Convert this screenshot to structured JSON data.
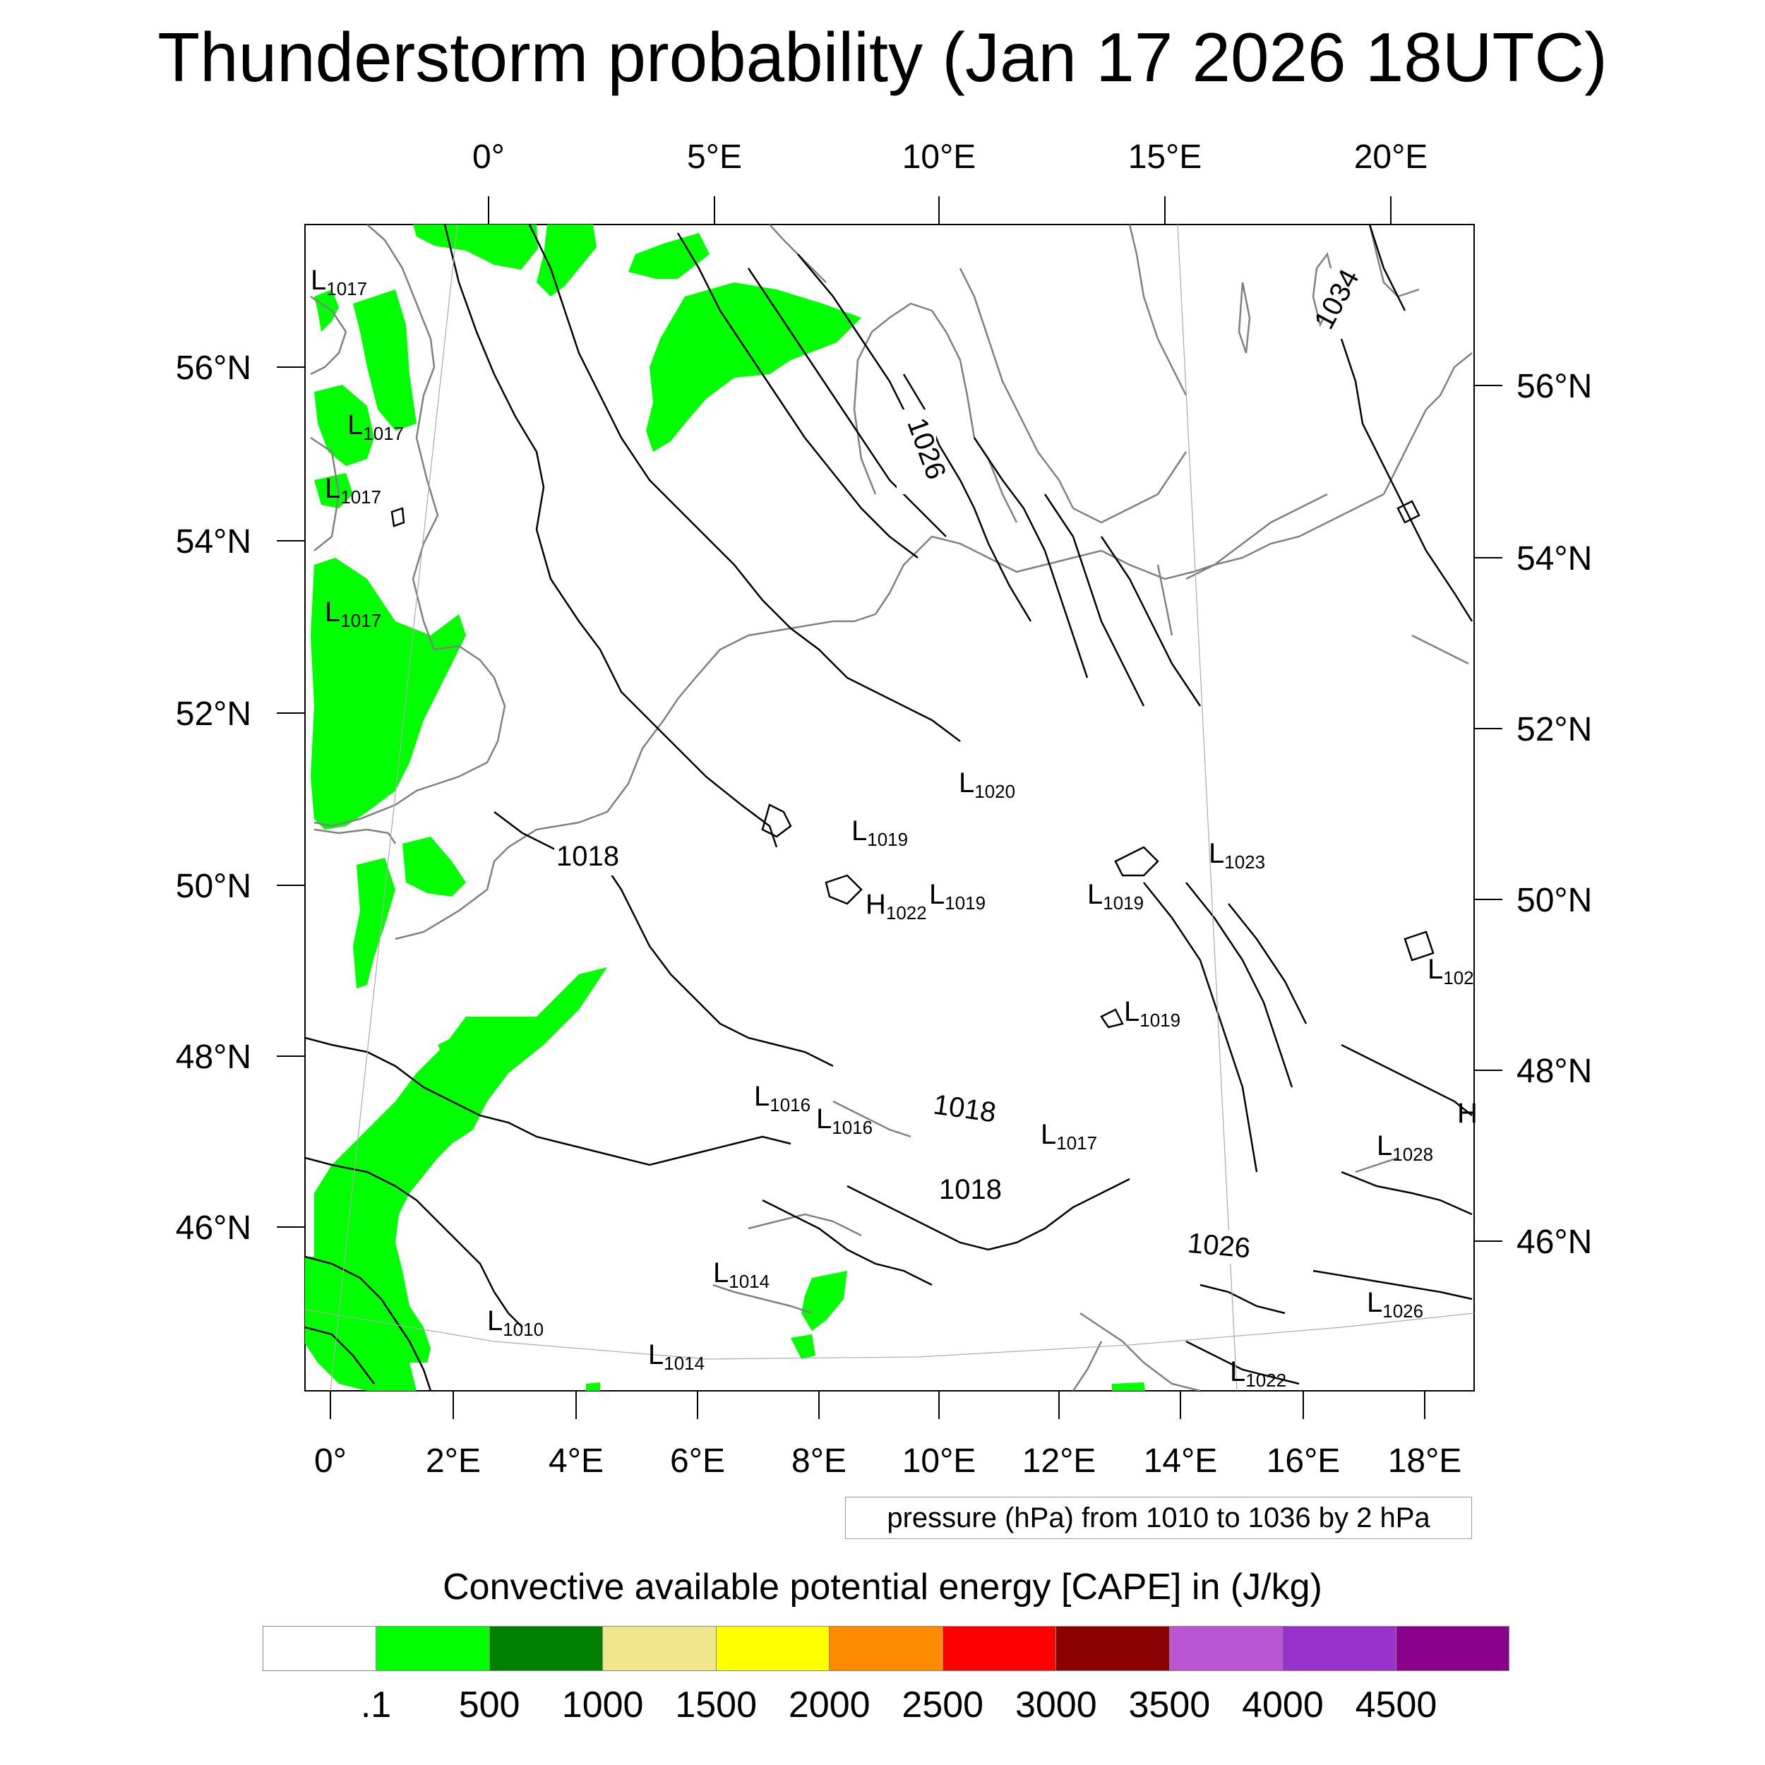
{
  "title": "Thunderstorm probability (Jan 17 2026 18UTC)",
  "top_lon_labels": [
    "0°",
    "5°E",
    "10°E",
    "15°E",
    "20°E"
  ],
  "bottom_lon_labels": [
    "0°",
    "2°E",
    "4°E",
    "6°E",
    "8°E",
    "10°E",
    "12°E",
    "14°E",
    "16°E",
    "18°E"
  ],
  "left_lat_labels": [
    "56°N",
    "54°N",
    "52°N",
    "50°N",
    "48°N",
    "46°N"
  ],
  "right_lat_labels": [
    "56°N",
    "54°N",
    "52°N",
    "50°N",
    "48°N",
    "46°N"
  ],
  "contour_labels": [
    "1018",
    "1018",
    "1018",
    "1026",
    "1026",
    "1034"
  ],
  "pressure_extrema": [
    {
      "type": "L",
      "value": "1017"
    },
    {
      "type": "L",
      "value": "1017"
    },
    {
      "type": "L",
      "value": "1017"
    },
    {
      "type": "L",
      "value": "1017"
    },
    {
      "type": "L",
      "value": "1020"
    },
    {
      "type": "L",
      "value": "1019"
    },
    {
      "type": "H",
      "value": "1022"
    },
    {
      "type": "L",
      "value": "1019"
    },
    {
      "type": "L",
      "value": "1019"
    },
    {
      "type": "L",
      "value": "1023"
    },
    {
      "type": "L",
      "value": "1019"
    },
    {
      "type": "L",
      "value": "1016"
    },
    {
      "type": "L",
      "value": "1016"
    },
    {
      "type": "L",
      "value": "1017"
    },
    {
      "type": "L",
      "value": "1028"
    },
    {
      "type": "L",
      "value": "1014"
    },
    {
      "type": "L",
      "value": "1010"
    },
    {
      "type": "L",
      "value": "1014"
    },
    {
      "type": "L",
      "value": "1026"
    },
    {
      "type": "L",
      "value": "1022"
    },
    {
      "type": "L",
      "value": "102"
    },
    {
      "type": "H",
      "value": ""
    }
  ],
  "pressure_note": "pressure (hPa) from 1010 to 1036 by 2 hPa",
  "colorbar": {
    "title": "Convective available potential energy [CAPE] in (J/kg)",
    "colors": [
      "#ffffff",
      "#00ff00",
      "#008000",
      "#f0e68c",
      "#ffff00",
      "#ff8c00",
      "#ff0000",
      "#8b0000",
      "#ba55d3",
      "#9932cc",
      "#8b008b"
    ],
    "tick_labels": [
      ".1",
      "500",
      "1000",
      "1500",
      "2000",
      "2500",
      "3000",
      "3500",
      "4000",
      "4500"
    ]
  },
  "colors": {
    "cape_green": "#00ff00",
    "coast": "#808080",
    "isobar": "#000000"
  }
}
